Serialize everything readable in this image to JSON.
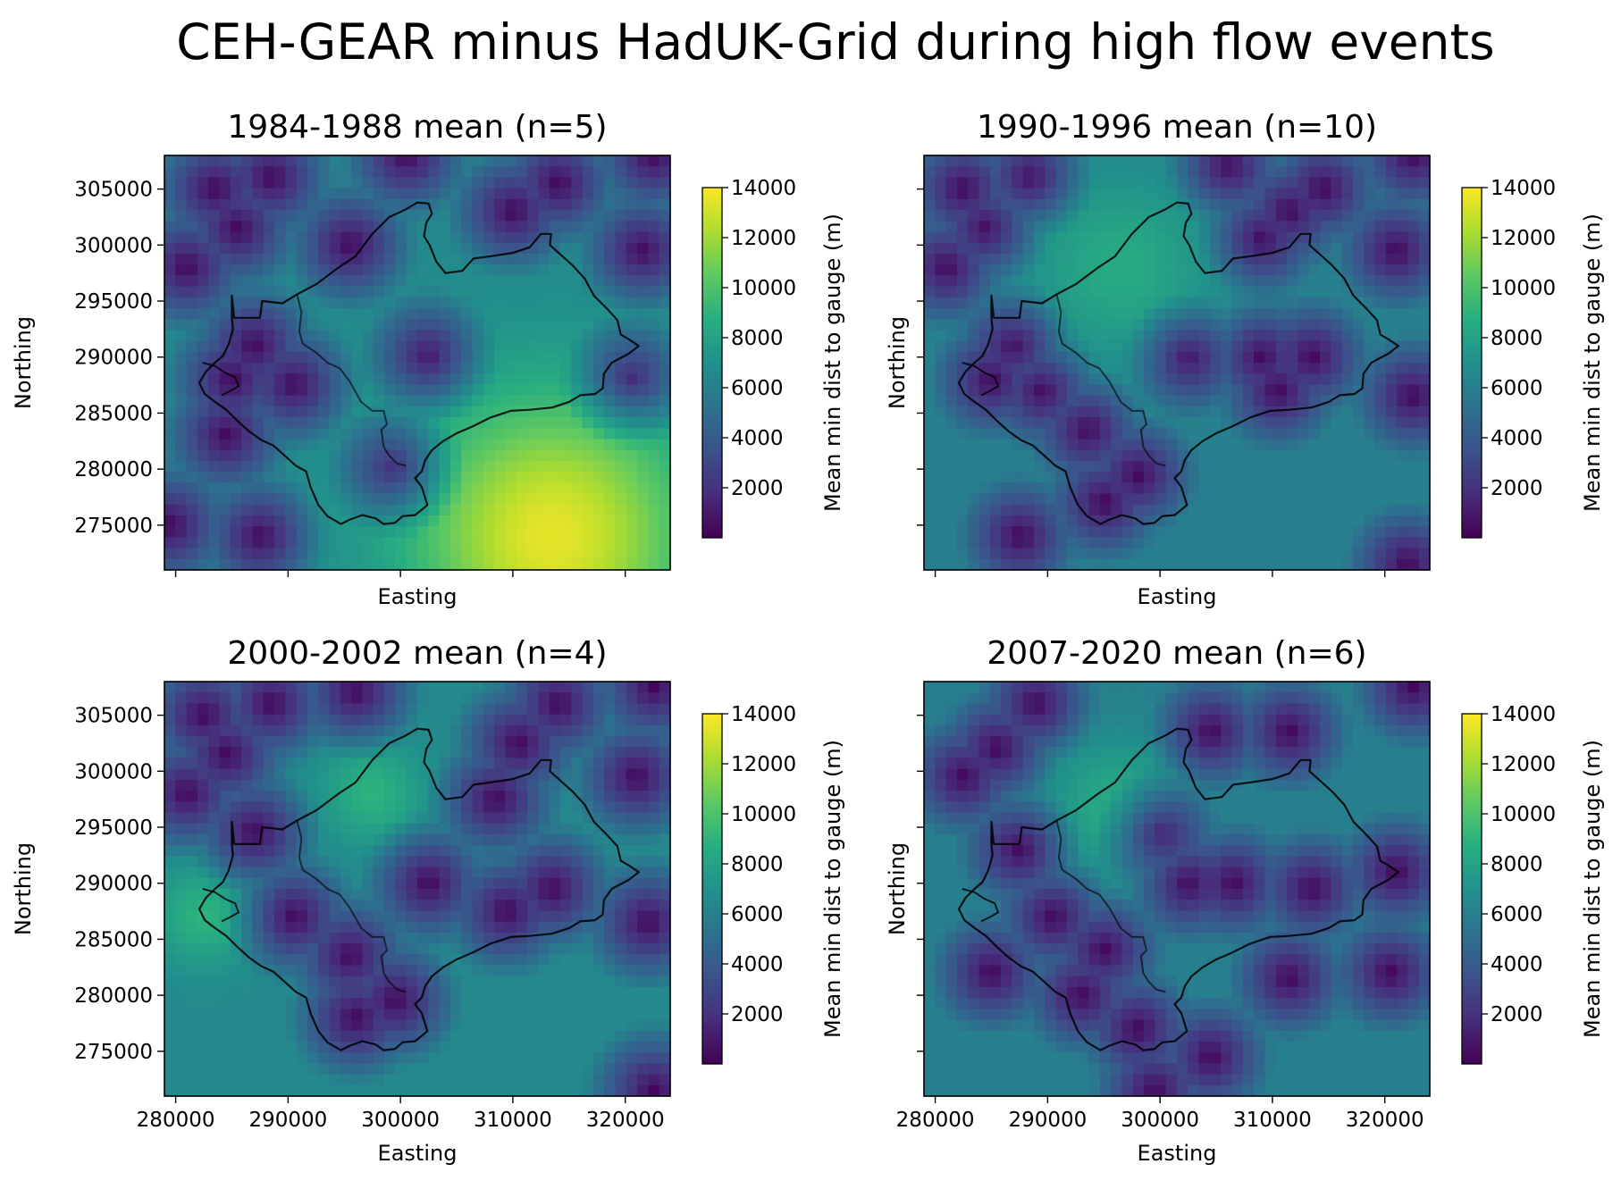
{
  "figure": {
    "suptitle": "CEH-GEAR minus HadUK-Grid during high flow events"
  },
  "colors": {
    "colormap": "viridis",
    "outline": "#000000"
  },
  "chart_data": [
    {
      "type": "heatmap",
      "title": "1984-1988 mean (n=5)",
      "xlabel": "Easting",
      "ylabel": "Northing",
      "colorbar_label": "Mean min dist to gauge (m)",
      "colorbar_ticks": [
        "2000",
        "4000",
        "6000",
        "8000",
        "10000",
        "12000",
        "14000"
      ],
      "clim": [
        0,
        14000
      ],
      "xlim": [
        279000,
        324000
      ],
      "ylim": [
        271000,
        308000
      ],
      "x_ticks": [
        "280000",
        "290000",
        "300000",
        "310000",
        "320000"
      ],
      "y_ticks": [
        "275000",
        "280000",
        "285000",
        "290000",
        "295000",
        "300000",
        "305000"
      ],
      "show_x_ticklabels": false,
      "show_y_ticklabels": true,
      "show_xlabel": true,
      "show_ylabel": true,
      "base_distance": 6500,
      "gauges": [
        [
          283500,
          305000
        ],
        [
          285500,
          301500
        ],
        [
          281000,
          298000
        ],
        [
          288500,
          306000
        ],
        [
          287000,
          291000
        ],
        [
          285000,
          288000
        ],
        [
          284500,
          283000
        ],
        [
          290500,
          287500
        ],
        [
          287500,
          274000
        ],
        [
          279500,
          275000
        ],
        [
          302500,
          290000
        ],
        [
          299500,
          280000
        ],
        [
          300500,
          308000
        ],
        [
          310000,
          303000
        ],
        [
          314000,
          305500
        ],
        [
          321500,
          299500
        ],
        [
          322500,
          308000
        ],
        [
          320500,
          288000
        ],
        [
          295500,
          300000
        ]
      ],
      "hotspots": [
        [
          313500,
          274000,
          7000,
          9000
        ]
      ]
    },
    {
      "type": "heatmap",
      "title": "1990-1996 mean (n=10)",
      "xlabel": "Easting",
      "ylabel": "Northing",
      "colorbar_label": "Mean min dist to gauge (m)",
      "colorbar_ticks": [
        "2000",
        "4000",
        "6000",
        "8000",
        "10000",
        "12000",
        "14000"
      ],
      "clim": [
        0,
        14000
      ],
      "xlim": [
        279000,
        324000
      ],
      "ylim": [
        271000,
        308000
      ],
      "x_ticks": [
        "280000",
        "290000",
        "300000",
        "310000",
        "320000"
      ],
      "y_ticks": [
        "275000",
        "280000",
        "285000",
        "290000",
        "295000",
        "300000",
        "305000"
      ],
      "show_x_ticklabels": false,
      "show_y_ticklabels": false,
      "show_xlabel": true,
      "show_ylabel": true,
      "base_distance": 6000,
      "gauges": [
        [
          282500,
          305000
        ],
        [
          284500,
          301500
        ],
        [
          281000,
          298000
        ],
        [
          288500,
          306000
        ],
        [
          287000,
          291000
        ],
        [
          285000,
          288000
        ],
        [
          289500,
          287000
        ],
        [
          293500,
          283500
        ],
        [
          295000,
          277000
        ],
        [
          287500,
          274000
        ],
        [
          298000,
          279500
        ],
        [
          302500,
          290000
        ],
        [
          309000,
          290000
        ],
        [
          310500,
          287000
        ],
        [
          313500,
          290000
        ],
        [
          306000,
          307000
        ],
        [
          311500,
          303000
        ],
        [
          314500,
          305000
        ],
        [
          321000,
          299500
        ],
        [
          322500,
          308000
        ],
        [
          322500,
          286500
        ],
        [
          309000,
          300500
        ],
        [
          322000,
          271500
        ]
      ],
      "hotspots": [
        [
          296500,
          298000,
          2500,
          6000
        ]
      ]
    },
    {
      "type": "heatmap",
      "title": "2000-2002 mean (n=4)",
      "xlabel": "Easting",
      "ylabel": "Northing",
      "colorbar_label": "Mean min dist to gauge (m)",
      "colorbar_ticks": [
        "2000",
        "4000",
        "6000",
        "8000",
        "10000",
        "12000",
        "14000"
      ],
      "clim": [
        0,
        14000
      ],
      "xlim": [
        279000,
        324000
      ],
      "ylim": [
        271000,
        308000
      ],
      "x_ticks": [
        "280000",
        "290000",
        "300000",
        "310000",
        "320000"
      ],
      "y_ticks": [
        "275000",
        "280000",
        "285000",
        "290000",
        "295000",
        "300000",
        "305000"
      ],
      "show_x_ticklabels": true,
      "show_y_ticklabels": true,
      "show_xlabel": true,
      "show_ylabel": true,
      "base_distance": 6500,
      "gauges": [
        [
          282500,
          305000
        ],
        [
          284500,
          301500
        ],
        [
          281000,
          298000
        ],
        [
          288500,
          306000
        ],
        [
          296000,
          307000
        ],
        [
          287000,
          294500
        ],
        [
          290500,
          287000
        ],
        [
          295500,
          283500
        ],
        [
          296000,
          278000
        ],
        [
          299500,
          279500
        ],
        [
          302500,
          290000
        ],
        [
          309500,
          287500
        ],
        [
          313500,
          289500
        ],
        [
          308500,
          297500
        ],
        [
          310500,
          302500
        ],
        [
          314000,
          306000
        ],
        [
          321000,
          299500
        ],
        [
          322500,
          307500
        ],
        [
          322000,
          286500
        ],
        [
          322500,
          271500
        ]
      ],
      "hotspots": [
        [
          282500,
          287000,
          2500,
          3000
        ],
        [
          297500,
          298000,
          2500,
          3000
        ]
      ]
    },
    {
      "type": "heatmap",
      "title": "2007-2020 mean (n=6)",
      "xlabel": "Easting",
      "ylabel": "Northing",
      "colorbar_label": "Mean min dist to gauge (m)",
      "colorbar_ticks": [
        "2000",
        "4000",
        "6000",
        "8000",
        "10000",
        "12000",
        "14000"
      ],
      "clim": [
        0,
        14000
      ],
      "xlim": [
        279000,
        324000
      ],
      "ylim": [
        271000,
        308000
      ],
      "x_ticks": [
        "280000",
        "290000",
        "300000",
        "310000",
        "320000"
      ],
      "y_ticks": [
        "275000",
        "280000",
        "285000",
        "290000",
        "295000",
        "300000",
        "305000"
      ],
      "show_x_ticklabels": true,
      "show_y_ticklabels": false,
      "show_xlabel": true,
      "show_ylabel": true,
      "base_distance": 6000,
      "gauges": [
        [
          282500,
          299500
        ],
        [
          285500,
          302000
        ],
        [
          289000,
          306000
        ],
        [
          287500,
          293000
        ],
        [
          290500,
          287000
        ],
        [
          285000,
          282000
        ],
        [
          295000,
          284000
        ],
        [
          293000,
          280000
        ],
        [
          298000,
          277000
        ],
        [
          302500,
          290000
        ],
        [
          304500,
          303500
        ],
        [
          311500,
          303500
        ],
        [
          321000,
          291000
        ],
        [
          320500,
          282000
        ],
        [
          322500,
          307500
        ],
        [
          313500,
          289500
        ],
        [
          300000,
          294500
        ],
        [
          306500,
          290000
        ],
        [
          299500,
          271500
        ],
        [
          311500,
          281500
        ],
        [
          304500,
          274500
        ]
      ],
      "hotspots": [
        [
          296000,
          297000,
          2500,
          4000
        ]
      ]
    }
  ],
  "catchment": {
    "outline": [
      [
        285000,
        295500
      ],
      [
        285200,
        293500
      ],
      [
        287500,
        293500
      ],
      [
        287700,
        295000
      ],
      [
        289500,
        294800
      ],
      [
        290800,
        295600
      ],
      [
        292500,
        296500
      ],
      [
        294500,
        298000
      ],
      [
        296000,
        299000
      ],
      [
        297500,
        301000
      ],
      [
        299000,
        302500
      ],
      [
        300500,
        303200
      ],
      [
        301500,
        303800
      ],
      [
        302500,
        303700
      ],
      [
        302800,
        302800
      ],
      [
        302300,
        302000
      ],
      [
        302100,
        300800
      ],
      [
        302600,
        300000
      ],
      [
        303200,
        298500
      ],
      [
        304000,
        297500
      ],
      [
        305500,
        297700
      ],
      [
        306500,
        298800
      ],
      [
        308000,
        299000
      ],
      [
        310000,
        299300
      ],
      [
        311500,
        299800
      ],
      [
        312500,
        301000
      ],
      [
        313400,
        301000
      ],
      [
        313300,
        300000
      ],
      [
        314200,
        299200
      ],
      [
        315300,
        298200
      ],
      [
        316400,
        297000
      ],
      [
        317200,
        295500
      ],
      [
        318300,
        294400
      ],
      [
        319300,
        293300
      ],
      [
        319600,
        292000
      ],
      [
        320300,
        291600
      ],
      [
        321200,
        291000
      ],
      [
        320300,
        290300
      ],
      [
        318800,
        289500
      ],
      [
        318100,
        288500
      ],
      [
        318000,
        287200
      ],
      [
        317300,
        286700
      ],
      [
        316000,
        286600
      ],
      [
        315000,
        286000
      ],
      [
        313500,
        285500
      ],
      [
        311500,
        285300
      ],
      [
        309800,
        285200
      ],
      [
        308000,
        284600
      ],
      [
        306400,
        283800
      ],
      [
        305000,
        283200
      ],
      [
        303800,
        282500
      ],
      [
        302800,
        281700
      ],
      [
        302200,
        280800
      ],
      [
        301900,
        279800
      ],
      [
        301300,
        279200
      ],
      [
        301900,
        278400
      ],
      [
        302400,
        276800
      ],
      [
        301300,
        275900
      ],
      [
        300200,
        275800
      ],
      [
        299500,
        275200
      ],
      [
        298500,
        275100
      ],
      [
        297800,
        275600
      ],
      [
        296600,
        275900
      ],
      [
        295500,
        275500
      ],
      [
        294700,
        275100
      ],
      [
        293500,
        275800
      ],
      [
        292700,
        276800
      ],
      [
        292000,
        278400
      ],
      [
        291600,
        279800
      ],
      [
        290700,
        280300
      ],
      [
        289700,
        281200
      ],
      [
        288700,
        282100
      ],
      [
        287600,
        282600
      ],
      [
        286500,
        283400
      ],
      [
        285500,
        284300
      ],
      [
        284500,
        285300
      ],
      [
        283500,
        286000
      ],
      [
        282600,
        286700
      ],
      [
        282100,
        287700
      ],
      [
        282700,
        288700
      ],
      [
        283500,
        289500
      ],
      [
        284200,
        290100
      ],
      [
        284700,
        291100
      ],
      [
        285100,
        292500
      ],
      [
        285000,
        293500
      ]
    ],
    "inner_line": [
      [
        282400,
        289500
      ],
      [
        283500,
        289200
      ],
      [
        284400,
        288600
      ],
      [
        285300,
        288200
      ],
      [
        285600,
        287400
      ],
      [
        284900,
        287000
      ],
      [
        284100,
        286600
      ]
    ],
    "western_spur": [
      [
        290800,
        295600
      ],
      [
        291200,
        294000
      ],
      [
        291000,
        292300
      ],
      [
        291300,
        291200
      ],
      [
        292500,
        290400
      ],
      [
        293500,
        289500
      ],
      [
        294600,
        289000
      ],
      [
        295500,
        287800
      ],
      [
        296500,
        286000
      ],
      [
        297500,
        285200
      ],
      [
        298500,
        285200
      ],
      [
        298800,
        284000
      ],
      [
        298300,
        283500
      ],
      [
        298500,
        282000
      ],
      [
        299000,
        281200
      ],
      [
        299700,
        280500
      ],
      [
        300500,
        280300
      ]
    ]
  }
}
